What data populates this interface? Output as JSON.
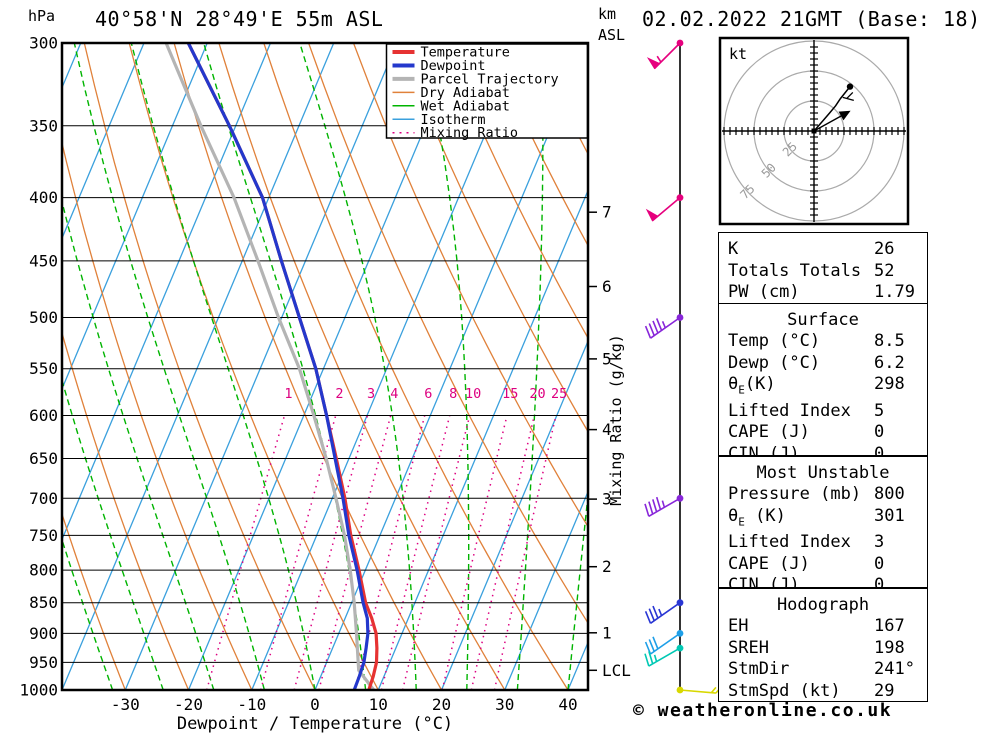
{
  "header": {
    "title": "40°58'N 28°49'E 55m ASL",
    "date_label": "02.02.2022 21GMT (Base: 18)",
    "pressure_unit": "hPa",
    "height_unit_line1": "km",
    "height_unit_line2": "ASL"
  },
  "axes": {
    "x_title": "Dewpoint / Temperature (°C)",
    "x_ticks": [
      -30,
      -20,
      -10,
      0,
      10,
      20,
      30,
      40
    ],
    "pressure_ticks": [
      300,
      350,
      400,
      450,
      500,
      550,
      600,
      650,
      700,
      750,
      800,
      850,
      900,
      950,
      1000
    ],
    "km_ticks": [
      {
        "km": 1,
        "p": 899
      },
      {
        "km": 2,
        "p": 795
      },
      {
        "km": 3,
        "p": 701
      },
      {
        "km": 4,
        "p": 616
      },
      {
        "km": 5,
        "p": 540
      },
      {
        "km": 6,
        "p": 472
      },
      {
        "km": 7,
        "p": 411
      }
    ],
    "lcl_label": "LCL",
    "lcl_pressure": 964,
    "mixing_axis_label": "Mixing Ratio (g/kg)"
  },
  "legend": {
    "items": [
      {
        "label": "Temperature",
        "color": "#e63232",
        "width": 4,
        "style": "solid"
      },
      {
        "label": "Dewpoint",
        "color": "#2438cc",
        "width": 4,
        "style": "solid"
      },
      {
        "label": "Parcel Trajectory",
        "color": "#b4b4b4",
        "width": 4,
        "style": "solid"
      },
      {
        "label": "Dry Adiabat",
        "color": "#e0813a",
        "width": 1.5,
        "style": "solid"
      },
      {
        "label": "Wet Adiabat",
        "color": "#00b400",
        "width": 1.5,
        "style": "solid"
      },
      {
        "label": "Isotherm",
        "color": "#3aa0dd",
        "width": 1.5,
        "style": "solid"
      },
      {
        "label": "Mixing Ratio",
        "color": "#dd0080",
        "width": 1.5,
        "style": "dotted"
      }
    ]
  },
  "chart_data": {
    "type": "skewt-log-p sounding",
    "temp_range_c": [
      -40,
      40
    ],
    "pressure_range_hpa": [
      300,
      1000
    ],
    "isotherm_step_c": 10,
    "dry_adiabat_theta_c": {
      "min": -40,
      "max": 130,
      "step": 10
    },
    "wet_adiabat_thetaw_c": {
      "min": -48,
      "max": 40,
      "step": 8
    },
    "mixing_ratio_lines_gkg": [
      1,
      2,
      3,
      4,
      6,
      8,
      10,
      15,
      20,
      25
    ],
    "sounding": {
      "pressure": [
        1000,
        975,
        950,
        925,
        900,
        875,
        850,
        800,
        750,
        700,
        650,
        600,
        550,
        500,
        450,
        400,
        350,
        300
      ],
      "temperature": [
        8.5,
        8.3,
        7.9,
        7.0,
        5.9,
        4.2,
        2.2,
        -1.0,
        -4.6,
        -8.0,
        -12.0,
        -16.4,
        -21.2,
        -27.2,
        -33.8,
        -41.0,
        -51.0,
        -63.0
      ],
      "dewpoint": [
        6.2,
        6.1,
        5.9,
        5.3,
        4.6,
        3.5,
        1.8,
        -1.3,
        -4.9,
        -8.3,
        -12.2,
        -16.4,
        -21.2,
        -27.2,
        -33.8,
        -41.0,
        -51.0,
        -63.0
      ]
    },
    "parcel": {
      "pressure": [
        1000,
        964,
        950,
        900,
        850,
        800,
        750,
        700,
        650,
        600,
        550,
        500,
        450,
        400,
        350,
        300
      ],
      "temperature": [
        9.3,
        5.6,
        5.0,
        2.8,
        0.4,
        -2.4,
        -5.6,
        -9.4,
        -13.6,
        -18.4,
        -23.8,
        -30.5,
        -37.5,
        -45.5,
        -55.5,
        -66.5
      ]
    },
    "winds": [
      {
        "p": 300,
        "speed_kt": 55,
        "dir_deg": 225,
        "color": "#e6007e"
      },
      {
        "p": 400,
        "speed_kt": 50,
        "dir_deg": 230,
        "color": "#e6007e"
      },
      {
        "p": 500,
        "speed_kt": 45,
        "dir_deg": 235,
        "color": "#8826d9"
      },
      {
        "p": 700,
        "speed_kt": 45,
        "dir_deg": 240,
        "color": "#8826d9"
      },
      {
        "p": 850,
        "speed_kt": 35,
        "dir_deg": 235,
        "color": "#2936d4"
      },
      {
        "p": 900,
        "speed_kt": 30,
        "dir_deg": 235,
        "color": "#1e9fe8"
      },
      {
        "p": 925,
        "speed_kt": 25,
        "dir_deg": 240,
        "color": "#00c8b4"
      },
      {
        "p": 1000,
        "speed_kt": 15,
        "dir_deg": 95,
        "color": "#d8d800"
      }
    ],
    "hodograph": {
      "unit_label": "kt",
      "ring_step_kt": 25,
      "ring_labels": [
        "25",
        "50",
        "75"
      ],
      "trace_uv_kt": [
        [
          0,
          0
        ],
        [
          7,
          8
        ],
        [
          13,
          15
        ],
        [
          18,
          21
        ],
        [
          22,
          27
        ],
        [
          26,
          32
        ],
        [
          30,
          37
        ]
      ],
      "storm_motion_uv_kt": [
        25.4,
        14.1
      ],
      "trace_barb_uv_kt": [
        24,
        28
      ]
    }
  },
  "tables": [
    {
      "name": "indices",
      "title": "",
      "rows": [
        {
          "label": "K",
          "value": "26"
        },
        {
          "label": "Totals Totals",
          "value": "52"
        },
        {
          "label": "PW (cm)",
          "value": "1.79"
        }
      ]
    },
    {
      "name": "surface",
      "title": "Surface",
      "rows": [
        {
          "label": "Temp (°C)",
          "value": "8.5"
        },
        {
          "label": "Dewp (°C)",
          "value": "6.2"
        },
        {
          "label": "θ",
          "sub": "E",
          "tail": "(K)",
          "value": "298"
        },
        {
          "label": "Lifted Index",
          "value": "5"
        },
        {
          "label": "CAPE (J)",
          "value": "0"
        },
        {
          "label": "CIN (J)",
          "value": "0"
        }
      ]
    },
    {
      "name": "most_unstable",
      "title": "Most Unstable",
      "rows": [
        {
          "label": "Pressure (mb)",
          "value": "800"
        },
        {
          "label": "θ",
          "sub": "E",
          "tail": " (K)",
          "value": "301"
        },
        {
          "label": "Lifted Index",
          "value": "3"
        },
        {
          "label": "CAPE (J)",
          "value": "0"
        },
        {
          "label": "CIN (J)",
          "value": "0"
        }
      ]
    },
    {
      "name": "hodograph_stats",
      "title": "Hodograph",
      "rows": [
        {
          "label": "EH",
          "value": "167"
        },
        {
          "label": "SREH",
          "value": "198"
        },
        {
          "label": "StmDir",
          "value": "241°"
        },
        {
          "label": "StmSpd (kt)",
          "value": "29"
        }
      ]
    }
  ],
  "footer": {
    "copyright": "© weatheronline.co.uk"
  }
}
